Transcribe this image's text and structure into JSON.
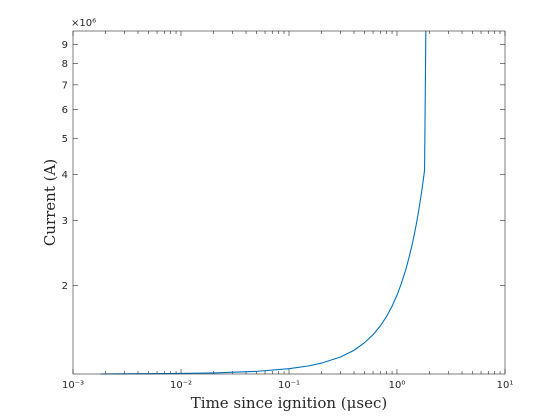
{
  "chart_data": {
    "type": "line",
    "xlabel": "Time since ignition (μsec)",
    "ylabel": "Current (A)",
    "xscale": "log",
    "yscale": "log",
    "xlim": [
      0.001,
      10
    ],
    "ylim": [
      1.15,
      9.8
    ],
    "y_multiplier_label": "×10⁶",
    "x_ticks": [
      {
        "value": 0.001,
        "label": "10⁻³"
      },
      {
        "value": 0.01,
        "label": "10⁻²"
      },
      {
        "value": 0.1,
        "label": "10⁻¹"
      },
      {
        "value": 1,
        "label": "10⁰"
      },
      {
        "value": 10,
        "label": "10¹"
      }
    ],
    "y_ticks": [
      {
        "value": 2,
        "label": "2"
      },
      {
        "value": 3,
        "label": "3"
      },
      {
        "value": 4,
        "label": "4"
      },
      {
        "value": 5,
        "label": "5"
      },
      {
        "value": 6,
        "label": "6"
      },
      {
        "value": 7,
        "label": "7"
      },
      {
        "value": 8,
        "label": "8"
      },
      {
        "value": 9,
        "label": "9"
      }
    ],
    "grid": false,
    "color": "#0072bd",
    "series": [
      {
        "x": [
          0.0018,
          0.003,
          0.005,
          0.01,
          0.02,
          0.05,
          0.1,
          0.15,
          0.2,
          0.3,
          0.4,
          0.5,
          0.6,
          0.7,
          0.8,
          0.9,
          1.0,
          1.1,
          1.2,
          1.3,
          1.4,
          1.5,
          1.6,
          1.7,
          1.8,
          1.85
        ],
        "y": [
          1.15,
          1.151,
          1.152,
          1.154,
          1.158,
          1.169,
          1.189,
          1.209,
          1.231,
          1.279,
          1.334,
          1.398,
          1.47,
          1.552,
          1.647,
          1.756,
          1.882,
          2.028,
          2.197,
          2.395,
          2.627,
          2.902,
          3.23,
          3.626,
          4.107,
          9.8
        ]
      }
    ]
  }
}
